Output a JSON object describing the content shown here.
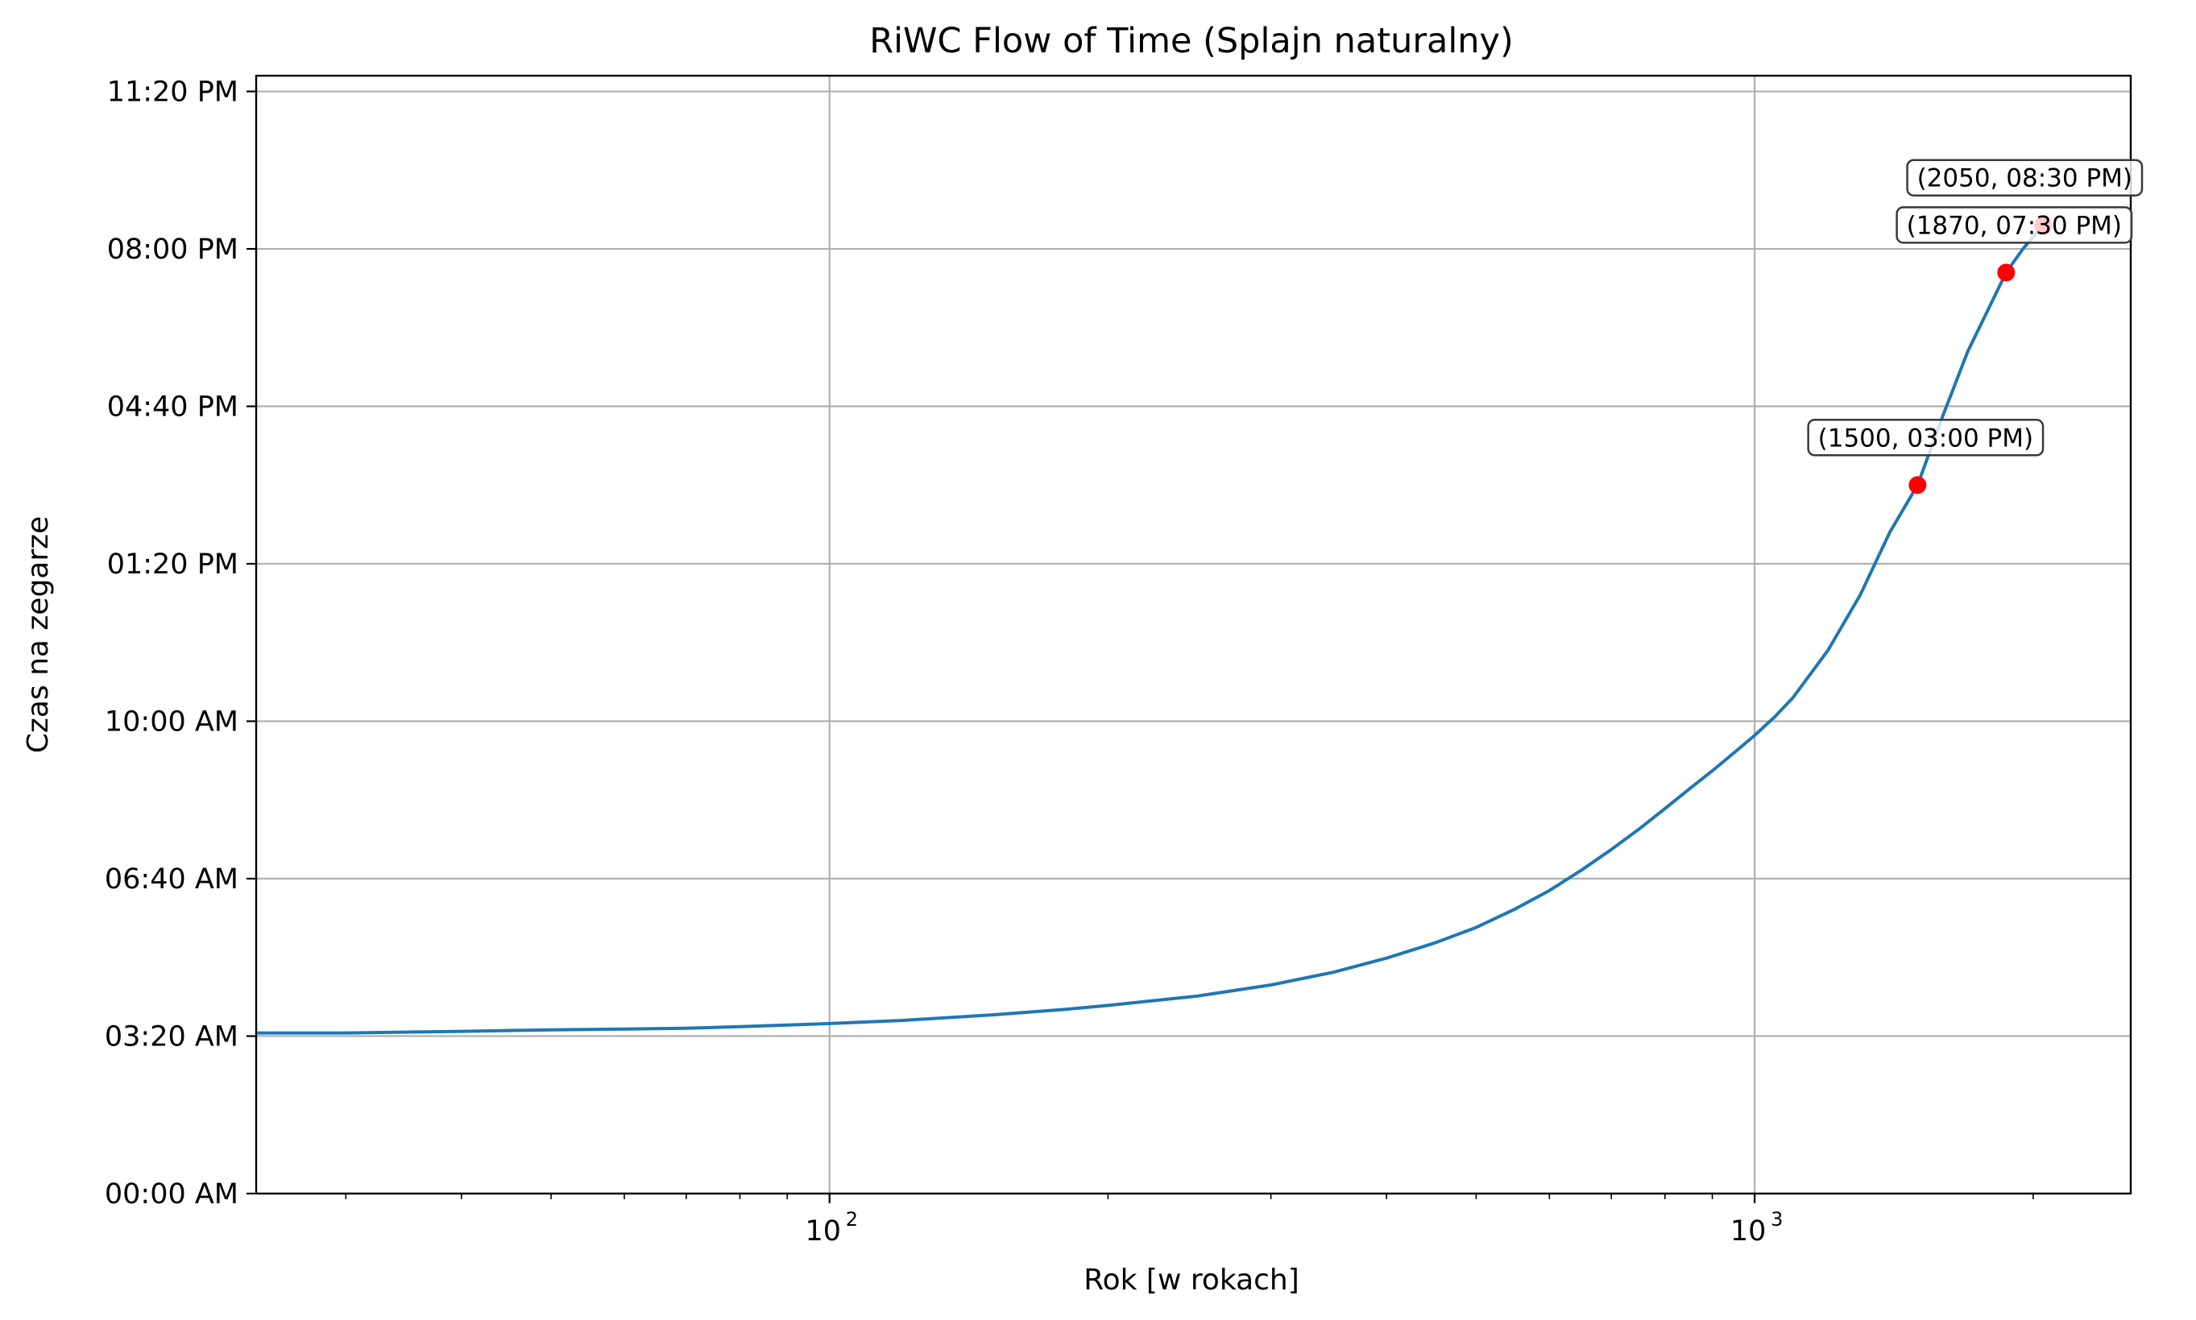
{
  "chart_data": {
    "type": "line",
    "title": "RiWC Flow of Time (Splajn naturalny)",
    "xlabel": "Rok [w rokach]",
    "ylabel": "Czas na zegarze",
    "x_scale": "log",
    "xlim": [
      24,
      2550
    ],
    "ylim": [
      0,
      1420
    ],
    "grid": true,
    "x_major_ticks": [
      {
        "value": 100,
        "label": "10",
        "exp": "2"
      },
      {
        "value": 1000,
        "label": "10",
        "exp": "3"
      }
    ],
    "x_minor_ticks": [
      30,
      40,
      50,
      60,
      70,
      80,
      90,
      200,
      300,
      400,
      500,
      600,
      700,
      800,
      900,
      2000
    ],
    "y_ticks": [
      {
        "value": 0,
        "label": "00:00 AM"
      },
      {
        "value": 200,
        "label": "03:20 AM"
      },
      {
        "value": 400,
        "label": "06:40 AM"
      },
      {
        "value": 600,
        "label": "10:00 AM"
      },
      {
        "value": 800,
        "label": "01:20 PM"
      },
      {
        "value": 1000,
        "label": "04:40 PM"
      },
      {
        "value": 1200,
        "label": "08:00 PM"
      },
      {
        "value": 1400,
        "label": "11:20 PM"
      }
    ],
    "series": [
      {
        "color": "#1f77b4",
        "x": [
          24,
          30,
          40,
          50,
          60,
          70,
          80,
          90,
          100,
          120,
          150,
          180,
          200,
          250,
          300,
          350,
          400,
          450,
          500,
          550,
          600,
          650,
          700,
          750,
          800,
          850,
          900,
          950,
          1000,
          1050,
          1100,
          1200,
          1300,
          1400,
          1500,
          1600,
          1700,
          1800,
          1870,
          1950,
          2050
        ],
        "y": [
          204,
          204,
          206,
          208,
          209,
          210,
          212,
          214,
          216,
          220,
          227,
          234,
          239,
          251,
          265,
          281,
          299,
          318,
          338,
          361,
          385,
          411,
          437,
          463,
          489,
          514,
          537,
          560,
          582,
          605,
          630,
          690,
          760,
          840,
          900,
          990,
          1070,
          1130,
          1170,
          1200,
          1230
        ]
      }
    ],
    "points": [
      {
        "x": 1500,
        "y": 900,
        "label": "(1500, 03:00 PM)"
      },
      {
        "x": 1870,
        "y": 1170,
        "label": "(1870, 07:30 PM)"
      },
      {
        "x": 2050,
        "y": 1230,
        "label": "(2050, 08:30 PM)"
      }
    ],
    "point_color": "#ff0000"
  }
}
